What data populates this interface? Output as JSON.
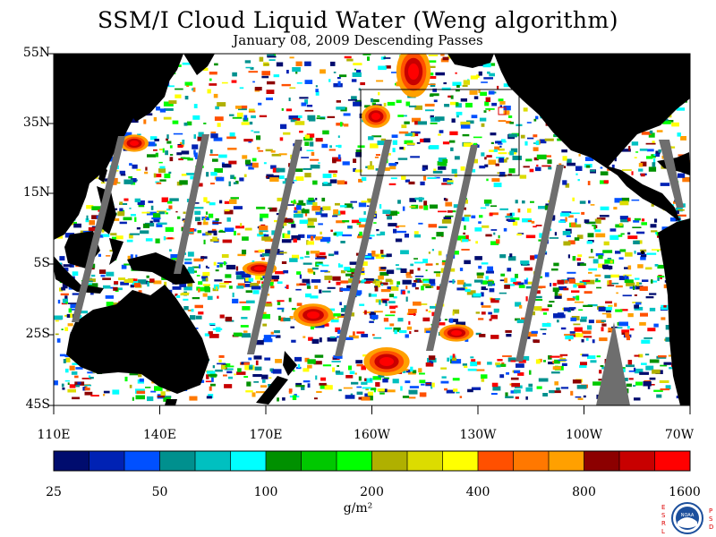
{
  "header": {
    "title": "SSM/I Cloud Liquid Water (Weng algorithm)",
    "subtitle": "January 08, 2009  Descending Passes"
  },
  "map": {
    "region": "Pacific Ocean",
    "lat_labels": [
      "55N",
      "35N",
      "15N",
      "5S",
      "25S",
      "45S"
    ],
    "lon_labels": [
      "110E",
      "140E",
      "170E",
      "160W",
      "130W",
      "100W",
      "70W"
    ],
    "land_color": "#000000",
    "no_data_color": "#6e6e6e",
    "clear_color": "#ffffff"
  },
  "colorbar": {
    "colors": [
      "#000c6e",
      "#0022b4",
      "#0050ff",
      "#00908e",
      "#00c0c0",
      "#00ffff",
      "#009000",
      "#00c800",
      "#00ff00",
      "#b0b000",
      "#dcdc00",
      "#ffff00",
      "#ff5000",
      "#ff7800",
      "#ffa000",
      "#8c0000",
      "#c80000",
      "#ff0000"
    ],
    "tick_labels": [
      "25",
      "50",
      "100",
      "200",
      "400",
      "800",
      "1600"
    ],
    "units": "g/m²"
  },
  "logo": {
    "left_text": "ESRL",
    "right_text": "PSD",
    "center_text": "NOAA"
  }
}
